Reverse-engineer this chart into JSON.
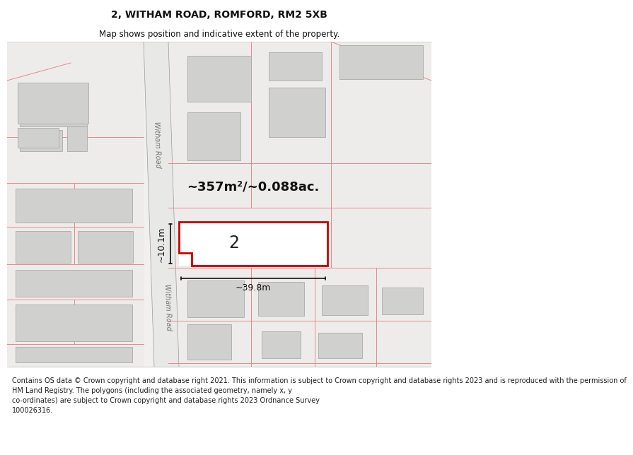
{
  "title_line1": "2, WITHAM ROAD, ROMFORD, RM2 5XB",
  "title_line2": "Map shows position and indicative extent of the property.",
  "footer_text": "Contains OS data © Crown copyright and database right 2021. This information is subject to Crown copyright and database rights 2023 and is reproduced with the permission of\nHM Land Registry. The polygons (including the associated geometry, namely x, y\nco-ordinates) are subject to Crown copyright and database rights 2023 Ordnance Survey\n100026316.",
  "area_label": "~357m²/~0.088ac.",
  "width_label": "~39.8m",
  "height_label": "~10.1m",
  "property_number": "2",
  "bg_color": "#ffffff",
  "map_bg": "#f2f0ee",
  "road_fill": "#e8e8e6",
  "road_edge": "#999999",
  "bld_fill": "#d0d0ce",
  "bld_edge": "#aaaaaa",
  "cad_color": "#e88888",
  "plot_color": "#cc0000",
  "dim_color": "#111111",
  "road_text_color": "#777777",
  "title_fontsize": 10,
  "subtitle_fontsize": 8.5,
  "footer_fontsize": 7.0
}
